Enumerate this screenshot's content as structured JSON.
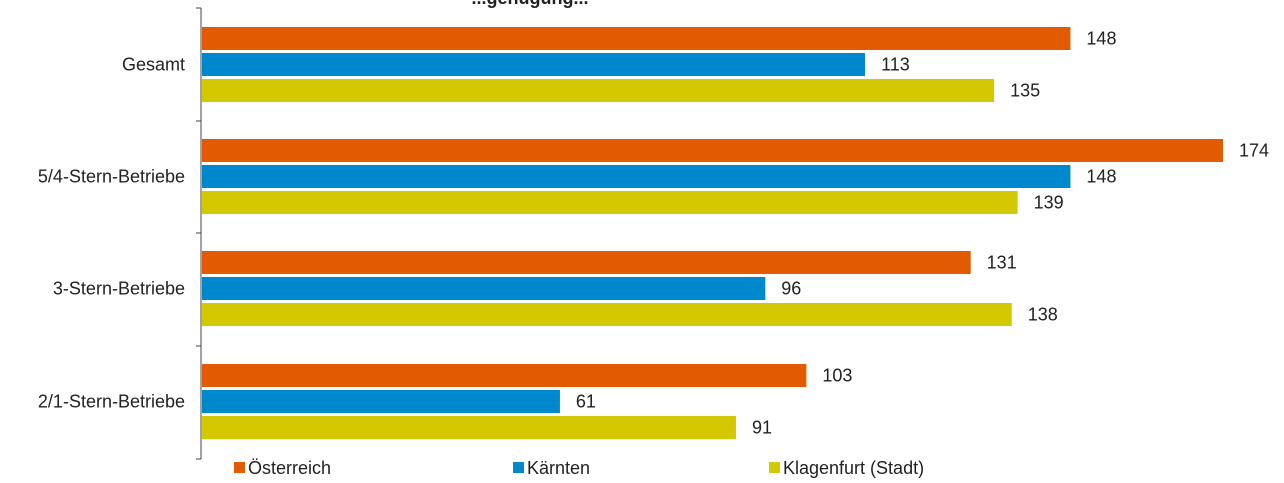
{
  "chart_data": {
    "type": "bar",
    "orientation": "horizontal",
    "title": "...genügung...",
    "categories": [
      "Gesamt",
      "5/4-Stern-Betriebe",
      "3-Stern-Betriebe",
      "2/1-Stern-Betriebe"
    ],
    "series": [
      {
        "name": "Österreich",
        "color": "#E35B00",
        "values": [
          148,
          174,
          131,
          103
        ]
      },
      {
        "name": "Kärnten",
        "color": "#0088CC",
        "values": [
          113,
          148,
          96,
          61
        ]
      },
      {
        "name": "Klagenfurt (Stadt)",
        "color": "#D4C800",
        "values": [
          135,
          139,
          138,
          91
        ]
      }
    ],
    "xlim": [
      0,
      174
    ],
    "grid": false,
    "legend": "bottom"
  }
}
